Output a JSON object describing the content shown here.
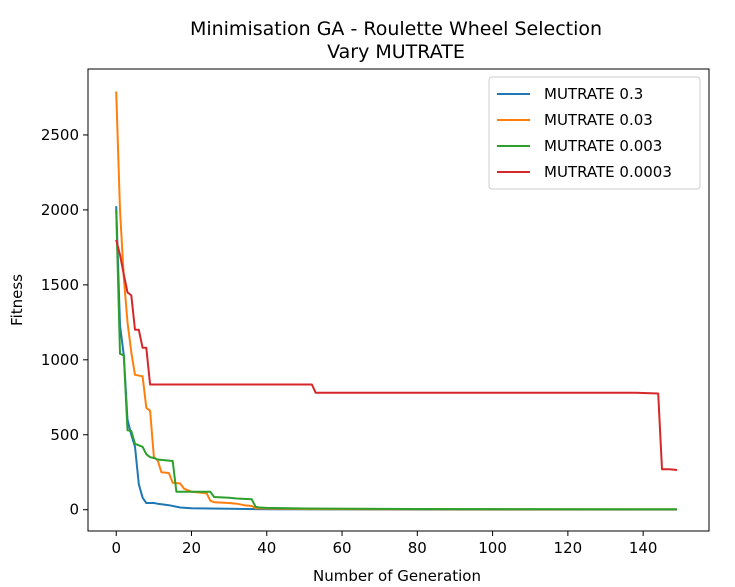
{
  "chart_data": {
    "type": "line",
    "title": "Minimisation GA - Roulette Wheel Selection",
    "subtitle": "Vary MUTRATE",
    "xlabel": "Number of Generation",
    "ylabel": "Fitness",
    "xlim": [
      -7.5,
      157.5
    ],
    "ylim": [
      -142,
      2940
    ],
    "xticks": [
      0,
      20,
      40,
      60,
      80,
      100,
      120,
      140
    ],
    "yticks": [
      0,
      500,
      1000,
      1500,
      2000,
      2500
    ],
    "grid": false,
    "legend_position": "top-right",
    "series": [
      {
        "name": "MUTRATE 0.3",
        "color": "#1f77b4",
        "points": [
          [
            0,
            2025
          ],
          [
            1,
            1230
          ],
          [
            2,
            1030
          ],
          [
            3,
            600
          ],
          [
            4,
            500
          ],
          [
            5,
            420
          ],
          [
            6,
            170
          ],
          [
            7,
            80
          ],
          [
            8,
            45
          ],
          [
            10,
            45
          ],
          [
            11,
            40
          ],
          [
            14,
            30
          ],
          [
            17,
            15
          ],
          [
            20,
            10
          ],
          [
            25,
            8
          ],
          [
            30,
            6
          ],
          [
            40,
            3
          ],
          [
            60,
            2
          ],
          [
            100,
            1
          ],
          [
            149,
            1
          ]
        ]
      },
      {
        "name": "MUTRATE 0.03",
        "color": "#ff7f0e",
        "points": [
          [
            0,
            2790
          ],
          [
            1,
            2000
          ],
          [
            2,
            1550
          ],
          [
            3,
            1250
          ],
          [
            4,
            1050
          ],
          [
            5,
            900
          ],
          [
            7,
            890
          ],
          [
            8,
            680
          ],
          [
            9,
            660
          ],
          [
            10,
            350
          ],
          [
            11,
            330
          ],
          [
            12,
            250
          ],
          [
            14,
            245
          ],
          [
            15,
            180
          ],
          [
            17,
            175
          ],
          [
            18,
            140
          ],
          [
            20,
            120
          ],
          [
            24,
            110
          ],
          [
            25,
            60
          ],
          [
            26,
            50
          ],
          [
            30,
            45
          ],
          [
            32,
            40
          ],
          [
            34,
            30
          ],
          [
            36,
            25
          ],
          [
            37,
            10
          ],
          [
            40,
            8
          ],
          [
            50,
            5
          ],
          [
            80,
            3
          ],
          [
            149,
            2
          ]
        ]
      },
      {
        "name": "MUTRATE 0.003",
        "color": "#2ca02c",
        "points": [
          [
            0,
            2000
          ],
          [
            1,
            1040
          ],
          [
            2,
            1030
          ],
          [
            3,
            530
          ],
          [
            4,
            525
          ],
          [
            5,
            440
          ],
          [
            7,
            420
          ],
          [
            8,
            370
          ],
          [
            9,
            350
          ],
          [
            10,
            345
          ],
          [
            11,
            335
          ],
          [
            15,
            325
          ],
          [
            16,
            120
          ],
          [
            25,
            120
          ],
          [
            26,
            85
          ],
          [
            30,
            80
          ],
          [
            32,
            75
          ],
          [
            36,
            70
          ],
          [
            37,
            20
          ],
          [
            38,
            15
          ],
          [
            40,
            12
          ],
          [
            50,
            8
          ],
          [
            80,
            5
          ],
          [
            149,
            3
          ]
        ]
      },
      {
        "name": "MUTRATE 0.0003",
        "color": "#d62728",
        "points": [
          [
            0,
            1800
          ],
          [
            1,
            1700
          ],
          [
            2,
            1570
          ],
          [
            3,
            1450
          ],
          [
            4,
            1430
          ],
          [
            5,
            1200
          ],
          [
            6,
            1200
          ],
          [
            7,
            1080
          ],
          [
            8,
            1080
          ],
          [
            9,
            835
          ],
          [
            52,
            835
          ],
          [
            53,
            780
          ],
          [
            138,
            780
          ],
          [
            144,
            775
          ],
          [
            145,
            270
          ],
          [
            147,
            270
          ],
          [
            149,
            265
          ]
        ]
      }
    ]
  }
}
